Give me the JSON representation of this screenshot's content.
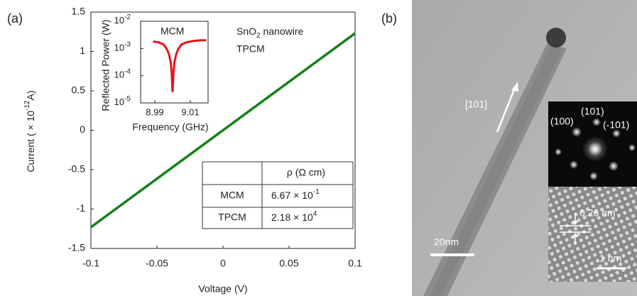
{
  "chart_data": [
    {
      "type": "line",
      "x": [
        -0.1,
        0.1
      ],
      "values": [
        -1.23,
        1.23
      ],
      "color": "#17801a",
      "xlim": [
        -0.1,
        0.1
      ],
      "ylim": [
        -1.5,
        1.5
      ],
      "xticks": [
        -0.1,
        -0.05,
        0,
        0.05,
        0.1
      ],
      "yticks": [
        -1.5,
        -1,
        -0.5,
        0,
        0.5,
        1,
        1.5
      ],
      "x_label": "Voltage (V)",
      "y_label": [
        "Current ( × 10",
        "-12",
        "A)"
      ],
      "annotation": [
        "SnO",
        "2",
        " nanowire"
      ],
      "annotation_2": "TPCM"
    },
    {
      "type": "line",
      "log_y": true,
      "x": [
        8.989,
        8.992,
        8.995,
        8.997,
        8.998,
        8.999,
        8.9995,
        9.0,
        9.0005,
        9.001,
        9.002,
        9.003,
        9.005,
        9.008,
        9.012,
        9.016,
        9.019
      ],
      "values": [
        0.0018,
        0.0017,
        0.0014,
        0.0009,
        0.0006,
        0.0003,
        0.00012,
        2.5e-05,
        0.00012,
        0.0003,
        0.0006,
        0.0009,
        0.0014,
        0.0017,
        0.0019,
        0.002,
        0.002
      ],
      "color": "#e8131b",
      "label": "MCM",
      "xlim": [
        8.982,
        9.02
      ],
      "ylim": [
        1e-05,
        0.01
      ],
      "xticks": [
        8.99,
        9.01
      ],
      "yticks": [
        {
          "value": 1e-05,
          "label": "10",
          "exponent": "-5"
        },
        {
          "value": 0.0001,
          "label": "10",
          "exponent": "-4"
        },
        {
          "value": 0.001,
          "label": "10",
          "exponent": "-3"
        },
        {
          "value": 0.01,
          "label": "10",
          "exponent": "-2"
        }
      ],
      "x_label": "Frequency (GHz)",
      "y_label": "Reflected Power (W)"
    }
  ],
  "panel_labels": [
    "(a)",
    "(b)"
  ],
  "table": {
    "header": "ρ (Ω cm)",
    "rows": [
      {
        "name": "MCM",
        "mantissa": "6.67 × 10",
        "exponent": "-1"
      },
      {
        "name": "TPCM",
        "mantissa": "2.18 × 10",
        "exponent": "4"
      }
    ]
  },
  "image": {
    "direction": "[101]",
    "scale_bar": "20nm",
    "fft_spots": [
      "(100)",
      "(101)",
      "(-101)"
    ],
    "spacing": "0.26 nm",
    "hr_scale_bar": "1 nm"
  }
}
